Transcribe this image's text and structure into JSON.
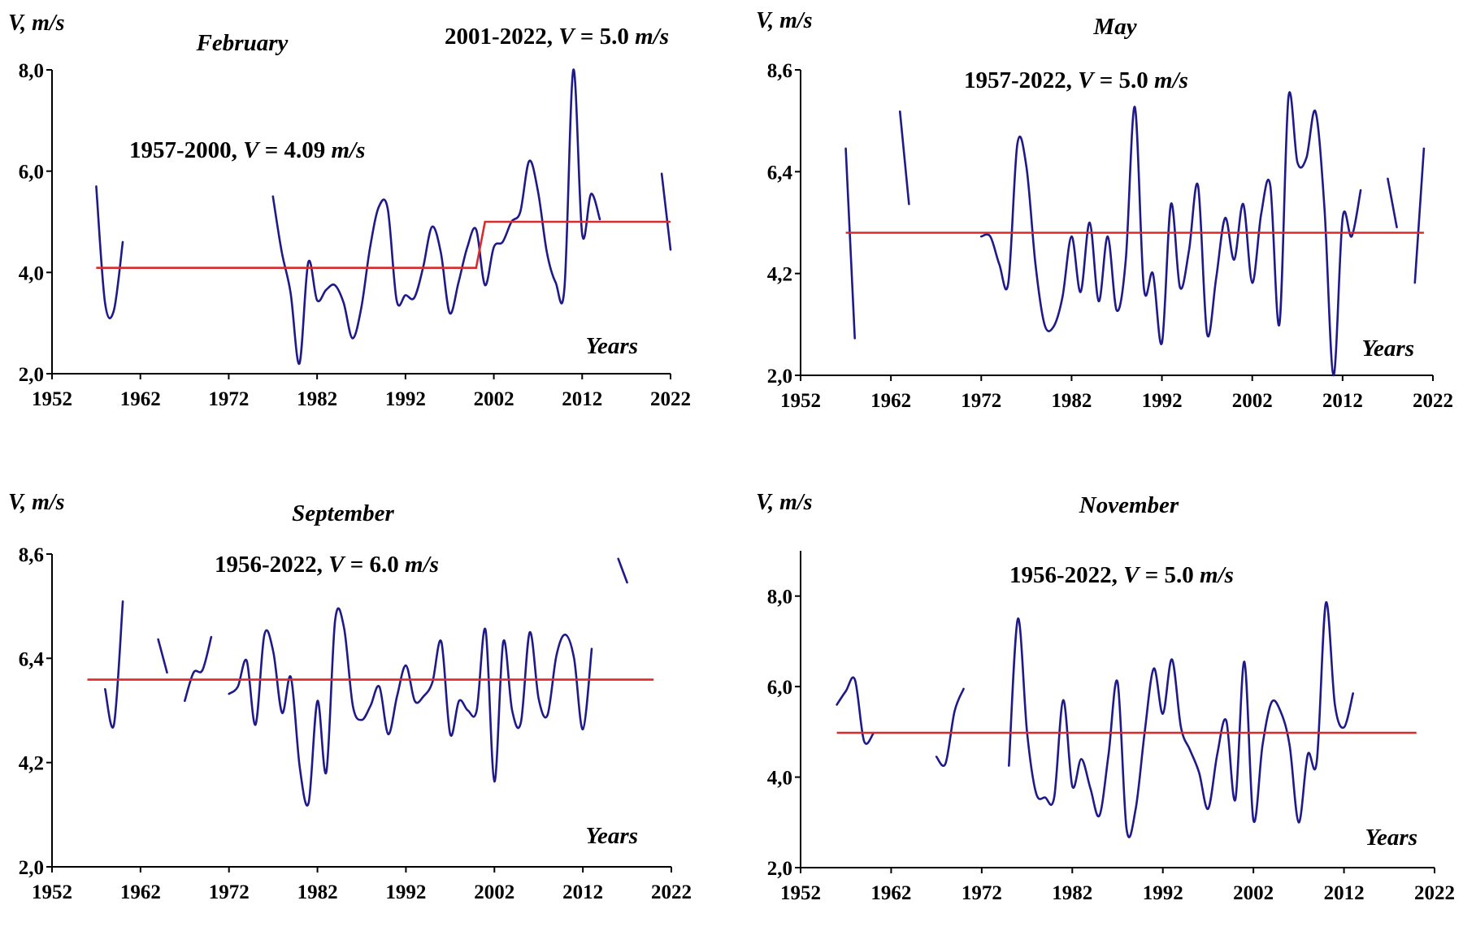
{
  "colors": {
    "series": "#1f1a8a",
    "mean": "#d92b2b",
    "axis": "#000000"
  },
  "chart_data": [
    {
      "type": "line",
      "title": "February",
      "ylabel": "V,  m/s",
      "xlabel": "Years",
      "xlim": [
        1952,
        2022
      ],
      "ylim": [
        2.0,
        8.0
      ],
      "xticks": [
        "1952",
        "1962",
        "1972",
        "1982",
        "1992",
        "2002",
        "2012",
        "2022"
      ],
      "yticks": [
        "2,0",
        "4,0",
        "6,0",
        "8,0"
      ],
      "grid": false,
      "annotations": [
        {
          "prefix": "2001-2022,  ",
          "var": "V",
          "eq": " = 5.0 ",
          "unit": "m/s"
        },
        {
          "prefix": "1957-2000,  ",
          "var": "V",
          "eq": " = 4.09 ",
          "unit": "m/s"
        }
      ],
      "series": [
        {
          "role": "wind speed",
          "segments": [
            [
              [
                1957,
                5.7
              ],
              [
                1958,
                3.4
              ],
              [
                1959,
                3.25
              ],
              [
                1960,
                4.6
              ]
            ],
            [
              [
                1977,
                5.5
              ],
              [
                1978,
                4.4
              ],
              [
                1979,
                3.6
              ],
              [
                1980,
                2.2
              ],
              [
                1981,
                4.2
              ],
              [
                1982,
                3.45
              ],
              [
                1983,
                3.65
              ],
              [
                1984,
                3.75
              ],
              [
                1985,
                3.4
              ],
              [
                1986,
                2.7
              ],
              [
                1987,
                3.3
              ],
              [
                1988,
                4.5
              ],
              [
                1989,
                5.3
              ],
              [
                1990,
                5.25
              ],
              [
                1991,
                3.45
              ],
              [
                1992,
                3.55
              ],
              [
                1993,
                3.5
              ],
              [
                1994,
                4.1
              ],
              [
                1995,
                4.9
              ],
              [
                1996,
                4.4
              ],
              [
                1997,
                3.2
              ],
              [
                1998,
                3.8
              ],
              [
                1999,
                4.5
              ],
              [
                2000,
                4.85
              ],
              [
                2001,
                3.75
              ],
              [
                2002,
                4.5
              ],
              [
                2003,
                4.6
              ],
              [
                2004,
                5.0
              ],
              [
                2005,
                5.2
              ],
              [
                2006,
                6.2
              ],
              [
                2007,
                5.6
              ],
              [
                2008,
                4.4
              ],
              [
                2009,
                3.8
              ],
              [
                2010,
                3.7
              ],
              [
                2011,
                8.0
              ],
              [
                2012,
                4.75
              ],
              [
                2013,
                5.55
              ],
              [
                2014,
                5.05
              ]
            ],
            [
              [
                2021,
                5.95
              ],
              [
                2022,
                4.45
              ]
            ]
          ]
        },
        {
          "role": "mean",
          "segments": [
            [
              [
                1957,
                4.09
              ],
              [
                2000,
                4.09
              ],
              [
                2001,
                5.0
              ],
              [
                2022,
                5.0
              ]
            ]
          ]
        }
      ]
    },
    {
      "type": "line",
      "title": "May",
      "ylabel": "V,  m/s",
      "xlabel": "Years",
      "xlim": [
        1952,
        2022
      ],
      "ylim": [
        2.0,
        8.6
      ],
      "xticks": [
        "1952",
        "1962",
        "1972",
        "1982",
        "1992",
        "2002",
        "2012",
        "2022"
      ],
      "yticks": [
        "2,0",
        "4,2",
        "6,4",
        "8,6"
      ],
      "grid": false,
      "annotations": [
        {
          "prefix": "1957-2022,  ",
          "var": "V",
          "eq": " = 5.0 ",
          "unit": "m/s"
        }
      ],
      "series": [
        {
          "role": "wind speed",
          "segments": [
            [
              [
                1957,
                6.9
              ],
              [
                1958,
                2.8
              ]
            ],
            [
              [
                1963,
                7.7
              ],
              [
                1964,
                5.7
              ]
            ],
            [
              [
                1972,
                5.0
              ],
              [
                1973,
                5.0
              ],
              [
                1974,
                4.4
              ],
              [
                1975,
                4.0
              ],
              [
                1976,
                7.0
              ],
              [
                1977,
                6.5
              ],
              [
                1978,
                4.4
              ],
              [
                1979,
                3.1
              ],
              [
                1980,
                3.05
              ],
              [
                1981,
                3.7
              ],
              [
                1982,
                5.0
              ],
              [
                1983,
                3.8
              ],
              [
                1984,
                5.3
              ],
              [
                1985,
                3.6
              ],
              [
                1986,
                5.0
              ],
              [
                1987,
                3.4
              ],
              [
                1988,
                4.5
              ],
              [
                1989,
                7.8
              ],
              [
                1990,
                3.9
              ],
              [
                1991,
                4.2
              ],
              [
                1992,
                2.7
              ],
              [
                1993,
                5.7
              ],
              [
                1994,
                3.9
              ],
              [
                1995,
                4.7
              ],
              [
                1996,
                6.1
              ],
              [
                1997,
                2.9
              ],
              [
                1998,
                4.1
              ],
              [
                1999,
                5.4
              ],
              [
                2000,
                4.5
              ],
              [
                2001,
                5.7
              ],
              [
                2002,
                4.0
              ],
              [
                2003,
                5.5
              ],
              [
                2004,
                6.1
              ],
              [
                2005,
                3.1
              ],
              [
                2006,
                8.0
              ],
              [
                2007,
                6.6
              ],
              [
                2008,
                6.7
              ],
              [
                2009,
                7.7
              ],
              [
                2010,
                5.6
              ],
              [
                2011,
                2.0
              ],
              [
                2012,
                5.4
              ],
              [
                2013,
                5.0
              ],
              [
                2014,
                6.0
              ]
            ],
            [
              [
                2017,
                6.25
              ],
              [
                2018,
                5.2
              ]
            ],
            [
              [
                2020,
                4.0
              ],
              [
                2021,
                6.9
              ]
            ]
          ]
        },
        {
          "role": "mean",
          "segments": [
            [
              [
                1957,
                5.08
              ],
              [
                2021,
                5.08
              ]
            ]
          ]
        }
      ]
    },
    {
      "type": "line",
      "title": "September",
      "ylabel": "V,  m/s",
      "xlabel": "Years",
      "xlim": [
        1952,
        2022
      ],
      "ylim": [
        2.0,
        8.6
      ],
      "xticks": [
        "1952",
        "1962",
        "1972",
        "1982",
        "1992",
        "2002",
        "2012",
        "2022"
      ],
      "yticks": [
        "2,0",
        "4,2",
        "6,4",
        "8,6"
      ],
      "grid": false,
      "annotations": [
        {
          "prefix": "1956-2022,  ",
          "var": "V",
          "eq": " = 6.0 ",
          "unit": "m/s"
        }
      ],
      "series": [
        {
          "role": "wind speed",
          "segments": [
            [
              [
                1958,
                5.75
              ],
              [
                1959,
                5.0
              ],
              [
                1960,
                7.6
              ]
            ],
            [
              [
                1964,
                6.8
              ],
              [
                1965,
                6.1
              ]
            ],
            [
              [
                1967,
                5.5
              ],
              [
                1968,
                6.1
              ],
              [
                1969,
                6.15
              ],
              [
                1970,
                6.85
              ]
            ],
            [
              [
                1972,
                5.65
              ],
              [
                1973,
                5.8
              ],
              [
                1974,
                6.35
              ],
              [
                1975,
                5.0
              ],
              [
                1976,
                6.9
              ],
              [
                1977,
                6.55
              ],
              [
                1978,
                5.25
              ],
              [
                1979,
                6.0
              ],
              [
                1980,
                4.1
              ],
              [
                1981,
                3.35
              ],
              [
                1982,
                5.5
              ],
              [
                1983,
                4.0
              ],
              [
                1984,
                7.2
              ],
              [
                1985,
                7.05
              ],
              [
                1986,
                5.4
              ],
              [
                1987,
                5.1
              ],
              [
                1988,
                5.4
              ],
              [
                1989,
                5.8
              ],
              [
                1990,
                4.8
              ],
              [
                1991,
                5.6
              ],
              [
                1992,
                6.25
              ],
              [
                1993,
                5.5
              ],
              [
                1994,
                5.6
              ],
              [
                1995,
                5.9
              ],
              [
                1996,
                6.75
              ],
              [
                1997,
                4.8
              ],
              [
                1998,
                5.5
              ],
              [
                1999,
                5.3
              ],
              [
                2000,
                5.3
              ],
              [
                2001,
                7.0
              ],
              [
                2002,
                3.8
              ],
              [
                2003,
                6.75
              ],
              [
                2004,
                5.3
              ],
              [
                2005,
                5.05
              ],
              [
                2006,
                6.95
              ],
              [
                2007,
                5.55
              ],
              [
                2008,
                5.2
              ],
              [
                2009,
                6.45
              ],
              [
                2010,
                6.9
              ],
              [
                2011,
                6.4
              ],
              [
                2012,
                4.9
              ],
              [
                2013,
                6.6
              ]
            ],
            [
              [
                2016,
                8.5
              ],
              [
                2017,
                8.0
              ]
            ]
          ]
        },
        {
          "role": "mean",
          "segments": [
            [
              [
                1956,
                5.95
              ],
              [
                2020,
                5.95
              ]
            ]
          ]
        }
      ]
    },
    {
      "type": "line",
      "title": "November",
      "ylabel": "V,  m/s",
      "xlabel": "Years",
      "xlim": [
        1952,
        2022
      ],
      "ylim": [
        2.0,
        9.0
      ],
      "xticks": [
        "1952",
        "1962",
        "1972",
        "1982",
        "1992",
        "2002",
        "2012",
        "2022"
      ],
      "yticks": [
        "2,0",
        "4,0",
        "6,0",
        "8,0"
      ],
      "grid": false,
      "annotations": [
        {
          "prefix": "1956-2022,  ",
          "var": "V",
          "eq": " = 5.0 ",
          "unit": "m/s"
        }
      ],
      "series": [
        {
          "role": "wind speed",
          "segments": [
            [
              [
                1956,
                5.6
              ],
              [
                1957,
                5.9
              ],
              [
                1958,
                6.15
              ],
              [
                1959,
                4.8
              ],
              [
                1960,
                4.95
              ]
            ],
            [
              [
                1967,
                4.45
              ],
              [
                1968,
                4.3
              ],
              [
                1969,
                5.45
              ],
              [
                1970,
                5.95
              ]
            ],
            [
              [
                1975,
                4.25
              ],
              [
                1976,
                7.5
              ],
              [
                1977,
                5.0
              ],
              [
                1978,
                3.65
              ],
              [
                1979,
                3.55
              ],
              [
                1980,
                3.55
              ],
              [
                1981,
                5.7
              ],
              [
                1982,
                3.8
              ],
              [
                1983,
                4.4
              ],
              [
                1984,
                3.75
              ],
              [
                1985,
                3.15
              ],
              [
                1986,
                4.5
              ],
              [
                1987,
                6.1
              ],
              [
                1988,
                2.85
              ],
              [
                1989,
                3.3
              ],
              [
                1990,
                5.0
              ],
              [
                1991,
                6.4
              ],
              [
                1992,
                5.4
              ],
              [
                1993,
                6.6
              ],
              [
                1994,
                5.1
              ],
              [
                1995,
                4.6
              ],
              [
                1996,
                4.1
              ],
              [
                1997,
                3.3
              ],
              [
                1998,
                4.5
              ],
              [
                1999,
                5.25
              ],
              [
                2000,
                3.5
              ],
              [
                2001,
                6.55
              ],
              [
                2002,
                3.05
              ],
              [
                2003,
                4.7
              ],
              [
                2004,
                5.65
              ],
              [
                2005,
                5.45
              ],
              [
                2006,
                4.7
              ],
              [
                2007,
                3.0
              ],
              [
                2008,
                4.5
              ],
              [
                2009,
                4.35
              ],
              [
                2010,
                7.85
              ],
              [
                2011,
                5.6
              ],
              [
                2012,
                5.1
              ],
              [
                2013,
                5.85
              ]
            ]
          ]
        },
        {
          "role": "mean",
          "segments": [
            [
              [
                1956,
                4.98
              ],
              [
                2020,
                4.98
              ]
            ]
          ]
        }
      ]
    }
  ]
}
